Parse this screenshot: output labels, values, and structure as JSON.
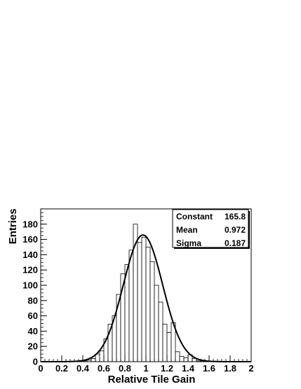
{
  "chart_data": {
    "type": "bar",
    "xlabel": "Relative Tile Gain",
    "ylabel": "Entries",
    "xlim": [
      0,
      2
    ],
    "ylim": [
      0,
      200
    ],
    "x_ticks": [
      "0",
      "0.2",
      "0.4",
      "0.6",
      "0.8",
      "1",
      "1.2",
      "1.4",
      "1.6",
      "1.8",
      "2"
    ],
    "y_ticks": [
      "0",
      "20",
      "40",
      "60",
      "80",
      "100",
      "120",
      "140",
      "160",
      "180"
    ],
    "bin_width": 0.04,
    "bins": [
      {
        "x": 0.4,
        "y": 1
      },
      {
        "x": 0.44,
        "y": 2
      },
      {
        "x": 0.48,
        "y": 4
      },
      {
        "x": 0.52,
        "y": 10
      },
      {
        "x": 0.56,
        "y": 14
      },
      {
        "x": 0.6,
        "y": 30
      },
      {
        "x": 0.64,
        "y": 49
      },
      {
        "x": 0.68,
        "y": 60
      },
      {
        "x": 0.72,
        "y": 88
      },
      {
        "x": 0.76,
        "y": 115
      },
      {
        "x": 0.8,
        "y": 127
      },
      {
        "x": 0.84,
        "y": 146
      },
      {
        "x": 0.88,
        "y": 180
      },
      {
        "x": 0.92,
        "y": 156
      },
      {
        "x": 0.96,
        "y": 163
      },
      {
        "x": 1.0,
        "y": 150
      },
      {
        "x": 1.04,
        "y": 131
      },
      {
        "x": 1.08,
        "y": 100
      },
      {
        "x": 1.12,
        "y": 78
      },
      {
        "x": 1.16,
        "y": 49
      },
      {
        "x": 1.2,
        "y": 38
      },
      {
        "x": 1.24,
        "y": 51
      },
      {
        "x": 1.28,
        "y": 13
      },
      {
        "x": 1.32,
        "y": 7
      },
      {
        "x": 1.36,
        "y": 5
      },
      {
        "x": 1.4,
        "y": 9
      },
      {
        "x": 1.44,
        "y": 4
      },
      {
        "x": 1.48,
        "y": 1
      },
      {
        "x": 1.52,
        "y": 1
      }
    ],
    "fit": {
      "type": "gaussian",
      "constant": 165.8,
      "mean": 0.972,
      "sigma": 0.187
    },
    "stats": [
      {
        "label": "Constant",
        "value": "165.8"
      },
      {
        "label": "Mean",
        "value": "0.972"
      },
      {
        "label": "Sigma",
        "value": "0.187"
      }
    ],
    "legend_position": "top-right",
    "grid": false
  }
}
